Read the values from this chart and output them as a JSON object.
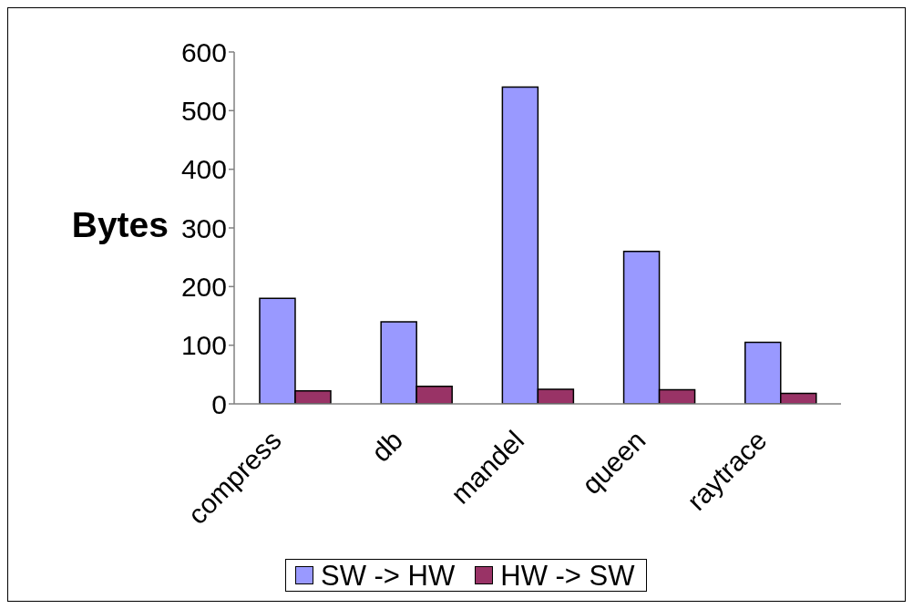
{
  "chart_data": {
    "type": "bar",
    "ylabel": "Bytes",
    "categories": [
      "compress",
      "db",
      "mandel",
      "queen",
      "raytrace"
    ],
    "series": [
      {
        "name": "SW -> HW",
        "color": "#9999ff",
        "values": [
          180,
          140,
          540,
          260,
          105
        ]
      },
      {
        "name": "HW -> SW",
        "color": "#993366",
        "values": [
          22,
          30,
          25,
          24,
          18
        ]
      }
    ],
    "ylim": [
      0,
      600
    ],
    "yticks": [
      0,
      100,
      200,
      300,
      400,
      500,
      600
    ],
    "legend": "bottom"
  }
}
